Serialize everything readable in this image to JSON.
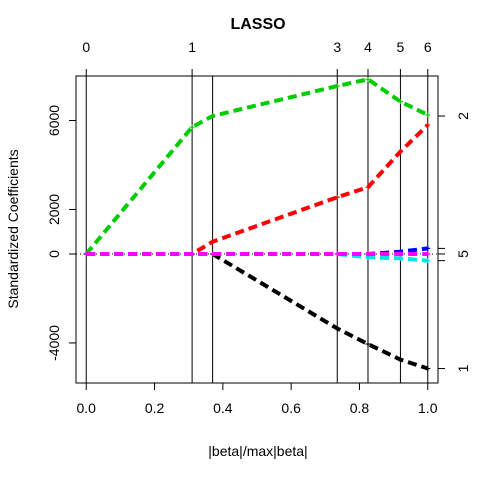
{
  "chart_data": {
    "type": "line",
    "title": "LASSO",
    "xlabel": "|beta|/max|beta|",
    "ylabel": "Standardized Coefficients",
    "xlim": [
      -0.03,
      1.03
    ],
    "ylim": [
      -5800,
      8000
    ],
    "x_ticks": [
      "0.0",
      "0.2",
      "0.4",
      "0.6",
      "0.8",
      "1.0"
    ],
    "x_tick_values": [
      0,
      0.2,
      0.4,
      0.6,
      0.8,
      1.0
    ],
    "y_ticks": [
      "-4000",
      "0",
      "2000",
      "6000"
    ],
    "y_tick_values": [
      -4000,
      0,
      2000,
      6000
    ],
    "steps": [
      0,
      0.31,
      0.37,
      0.735,
      0.825,
      0.92,
      1.0
    ],
    "top_ticks": [
      "0",
      "1",
      "3",
      "4",
      "5",
      "6"
    ],
    "top_tick_values": [
      0,
      0.31,
      0.735,
      0.825,
      0.92,
      1.0
    ],
    "right_ticks": [
      "2",
      "5",
      "1"
    ],
    "right_tick_values": [
      6200,
      0,
      -5150
    ],
    "series": [
      {
        "color": "#00cc00",
        "x": [
          0,
          0.31,
          0.37,
          0.735,
          0.825,
          0.92,
          1.0
        ],
        "values": [
          0,
          5700,
          6200,
          7550,
          7850,
          6850,
          6250
        ]
      },
      {
        "color": "#ff0000",
        "x": [
          0,
          0.31,
          0.37,
          0.735,
          0.825,
          0.92,
          1.0
        ],
        "values": [
          0,
          0,
          550,
          2550,
          3000,
          4600,
          5800
        ]
      },
      {
        "color": "#000000",
        "x": [
          0,
          0.31,
          0.37,
          0.735,
          0.825,
          0.92,
          1.0
        ],
        "values": [
          0,
          0,
          0,
          -3350,
          -4050,
          -4750,
          -5150
        ]
      },
      {
        "color": "#0000ff",
        "x": [
          0,
          0.31,
          0.37,
          0.735,
          0.825,
          0.92,
          1.0
        ],
        "values": [
          0,
          0,
          0,
          0,
          0,
          100,
          250
        ]
      },
      {
        "color": "#00e5e5",
        "x": [
          0,
          0.31,
          0.37,
          0.735,
          0.825,
          0.92,
          1.0
        ],
        "values": [
          0,
          0,
          0,
          0,
          -150,
          -200,
          -300
        ]
      },
      {
        "color": "#ff00ff",
        "x": [
          0,
          0.31,
          0.37,
          0.735,
          0.825,
          0.92,
          1.0
        ],
        "values": [
          0,
          0,
          0,
          0,
          0,
          0,
          0
        ]
      }
    ]
  }
}
